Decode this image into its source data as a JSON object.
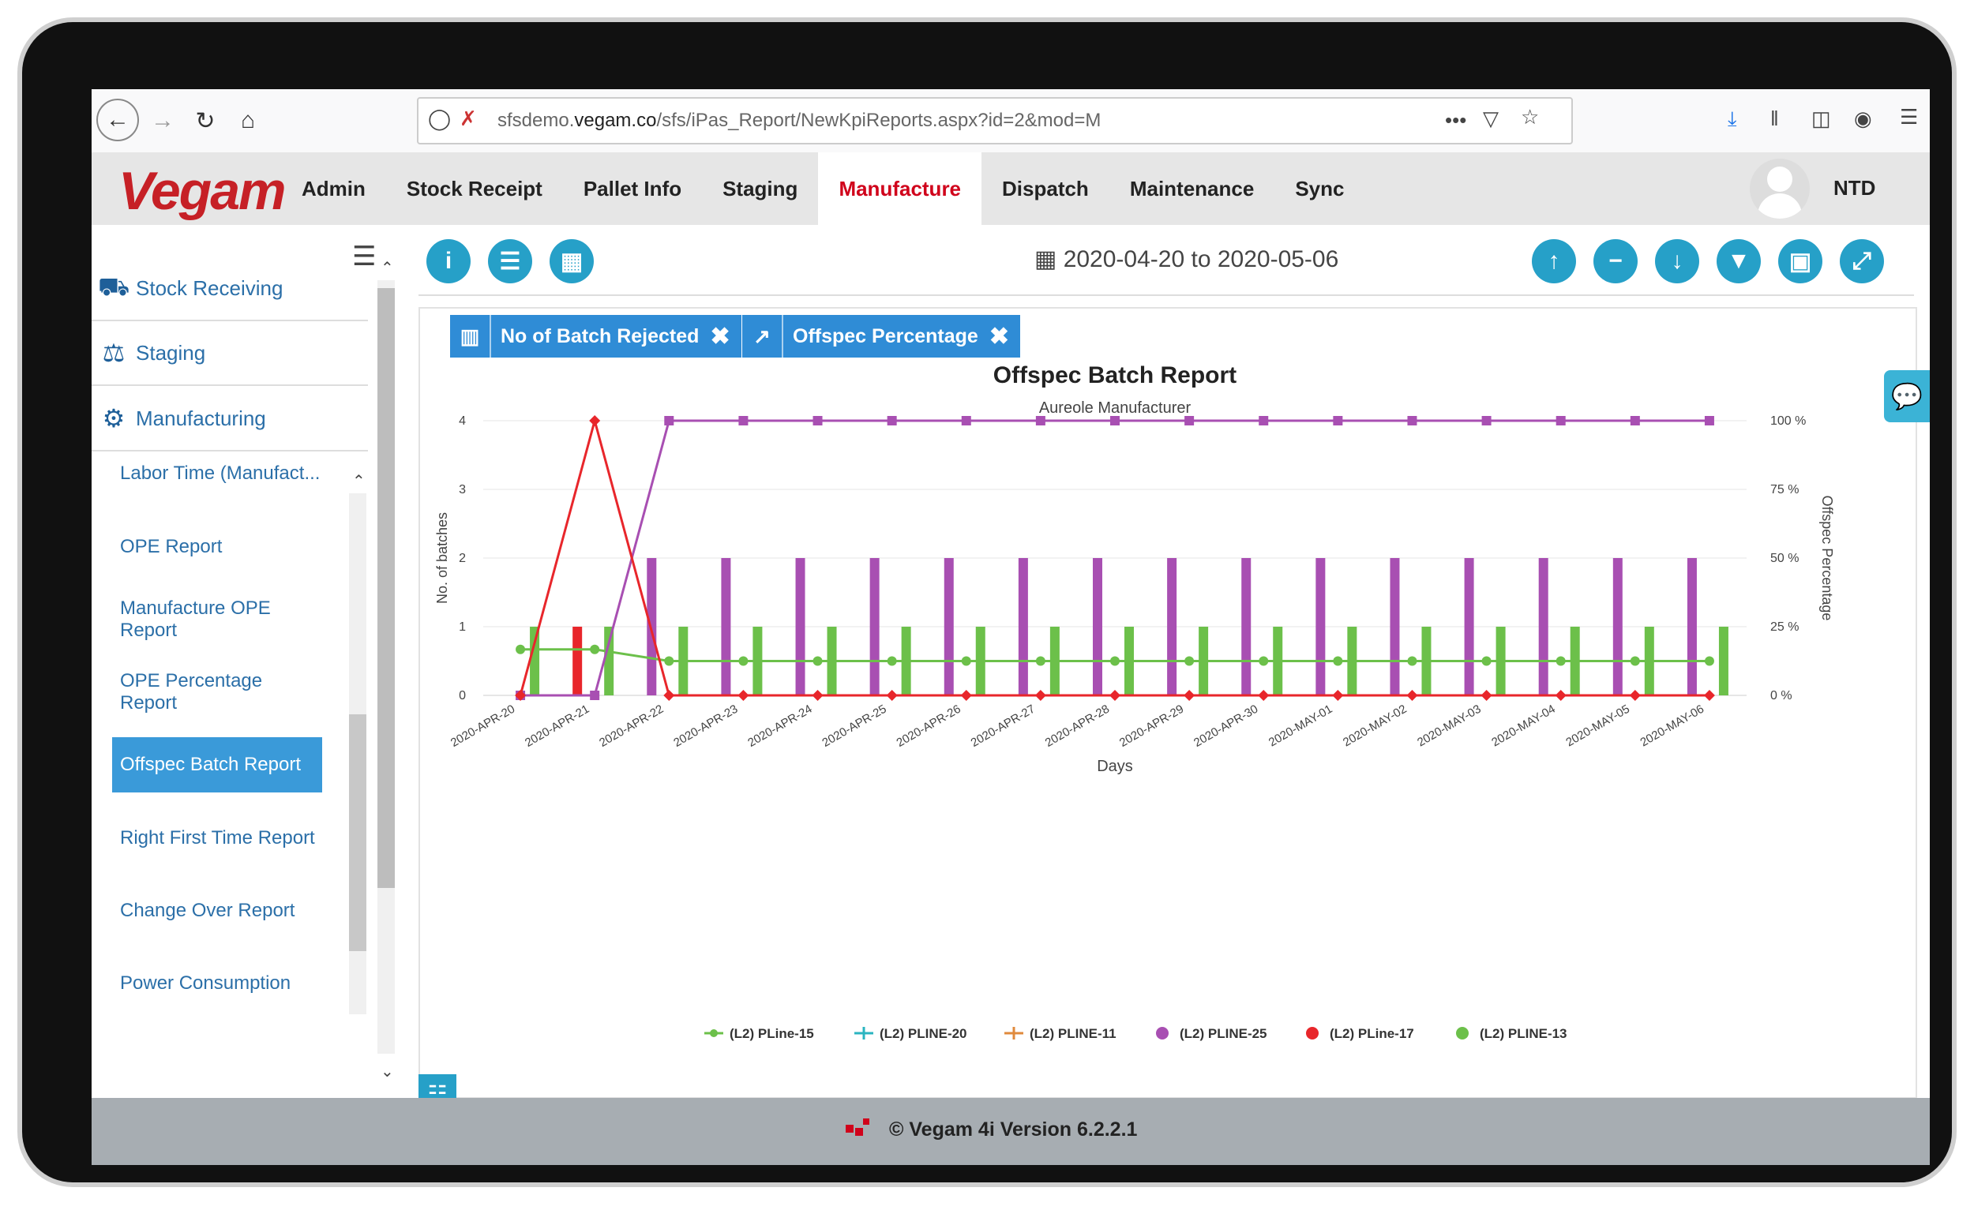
{
  "browser": {
    "url_prefix": "sfsdemo.",
    "url_domain": "vegam.co",
    "url_rest": "/sfs/iPas_Report/NewKpiReports.aspx?id=2&mod=M",
    "more_label": "•••"
  },
  "app": {
    "logo": "Vegam",
    "menu": [
      "Admin",
      "Stock Receipt",
      "Pallet Info",
      "Staging",
      "Manufacture",
      "Dispatch",
      "Maintenance",
      "Sync"
    ],
    "active_menu": "Manufacture",
    "user": "NTD"
  },
  "sidebar": {
    "sections": [
      {
        "label": "Stock Receiving",
        "icon": "truck-icon"
      },
      {
        "label": "Staging",
        "icon": "weight-icon"
      },
      {
        "label": "Manufacturing",
        "icon": "gears-icon"
      }
    ],
    "items": [
      {
        "label": "Labor Time (Manufact..."
      },
      {
        "label": "OPE Report"
      },
      {
        "label": "Manufacture OPE Report"
      },
      {
        "label": "OPE Percentage Report"
      },
      {
        "label": "Offspec Batch Report"
      },
      {
        "label": "Right First Time Report"
      },
      {
        "label": "Change Over Report"
      },
      {
        "label": "Power Consumption"
      }
    ]
  },
  "toolbar": {
    "date_range": "2020-04-20 to 2020-05-06"
  },
  "tags": [
    {
      "label": "No of Batch Rejected"
    },
    {
      "label": "Offspec Percentage"
    }
  ],
  "footer": {
    "text": "© Vegam 4i Version 6.2.2.1"
  },
  "chart_data": {
    "type": "bar",
    "title": "Offspec Batch Report",
    "subtitle": "Aureole Manufacturer",
    "xlabel": "Days",
    "ylabel": "No. of batches",
    "y2label": "Offspec Percentage",
    "ylim": [
      0,
      4
    ],
    "y2lim": [
      0,
      100
    ],
    "yticks": [
      "0",
      "1",
      "2",
      "3",
      "4"
    ],
    "y2ticks": [
      "0 %",
      "25 %",
      "50 %",
      "75 %",
      "100 %"
    ],
    "categories": [
      "2020-APR-20",
      "2020-APR-21",
      "2020-APR-22",
      "2020-APR-23",
      "2020-APR-24",
      "2020-APR-25",
      "2020-APR-26",
      "2020-APR-27",
      "2020-APR-28",
      "2020-APR-29",
      "2020-APR-30",
      "2020-MAY-01",
      "2020-MAY-02",
      "2020-MAY-03",
      "2020-MAY-04",
      "2020-MAY-05",
      "2020-MAY-06"
    ],
    "bar_series": [
      {
        "name": "(L2) PLINE-25",
        "color": "#a84fb2",
        "values": [
          0,
          0,
          2,
          2,
          2,
          2,
          2,
          2,
          2,
          2,
          2,
          2,
          2,
          2,
          2,
          2,
          2
        ]
      },
      {
        "name": "(L2) PLine-17",
        "color": "#e8262b",
        "values": [
          0,
          1,
          0,
          0,
          0,
          0,
          0,
          0,
          0,
          0,
          0,
          0,
          0,
          0,
          0,
          0,
          0
        ]
      },
      {
        "name": "(L2) PLINE-13",
        "color": "#6cc04a",
        "values": [
          1,
          1,
          1,
          1,
          1,
          1,
          1,
          1,
          1,
          1,
          1,
          1,
          1,
          1,
          1,
          1,
          1
        ]
      }
    ],
    "line_series": [
      {
        "name": "(L2) PLine-15",
        "color": "#6cc04a",
        "marker": "circle",
        "values": [
          0.67,
          0.67,
          0.5,
          0.5,
          0.5,
          0.5,
          0.5,
          0.5,
          0.5,
          0.5,
          0.5,
          0.5,
          0.5,
          0.5,
          0.5,
          0.5,
          0.5
        ]
      },
      {
        "name": "(L2) PLINE-25",
        "color": "#a84fb2",
        "marker": "square",
        "axis": "y2",
        "values": [
          0,
          0,
          100,
          100,
          100,
          100,
          100,
          100,
          100,
          100,
          100,
          100,
          100,
          100,
          100,
          100,
          100
        ]
      },
      {
        "name": "(L2) PLine-17",
        "color": "#e8262b",
        "marker": "diamond",
        "values": [
          0,
          4,
          0,
          0,
          0,
          0,
          0,
          0,
          0,
          0,
          0,
          0,
          0,
          0,
          0,
          0,
          0
        ]
      }
    ],
    "legend": [
      {
        "name": "(L2) PLine-15",
        "color": "#6cc04a",
        "shape": "line-circle"
      },
      {
        "name": "(L2) PLINE-20",
        "color": "#2ab4c0",
        "shape": "line-plus"
      },
      {
        "name": "(L2) PLINE-11",
        "color": "#e08a3c",
        "shape": "line-plus"
      },
      {
        "name": "(L2) PLINE-25",
        "color": "#a84fb2",
        "shape": "dot"
      },
      {
        "name": "(L2) PLine-17",
        "color": "#e8262b",
        "shape": "dot"
      },
      {
        "name": "(L2) PLINE-13",
        "color": "#6cc04a",
        "shape": "dot"
      }
    ],
    "legend_position": "bottom",
    "grid": true
  }
}
